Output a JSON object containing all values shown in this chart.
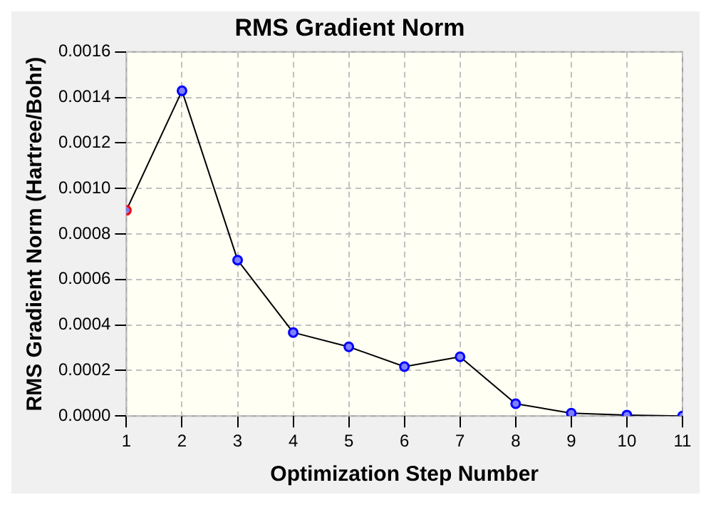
{
  "chart_data": {
    "type": "line",
    "title": "RMS Gradient Norm",
    "xlabel": "Optimization Step Number",
    "ylabel": "RMS Gradient Norm (Hartree/Bohr)",
    "x": [
      1,
      2,
      3,
      4,
      5,
      6,
      7,
      8,
      9,
      10,
      11
    ],
    "series": [
      {
        "color": "#000000",
        "values": [
          0.000904,
          0.001429,
          0.000685,
          0.000367,
          0.000304,
          0.000217,
          0.00026,
          5.4e-05,
          1.25e-05,
          4e-06,
          0
        ],
        "colors": [
          "#ff0000",
          "#0000ff",
          "#0000ff",
          "#0000ff",
          "#0000ff",
          "#0000ff",
          "#0000ff",
          "#0000ff",
          "#0000ff",
          "#0000ff",
          "#0000ff"
        ]
      }
    ],
    "xlim": [
      1,
      11
    ],
    "xticks": [
      1,
      2,
      3,
      4,
      5,
      6,
      7,
      8,
      9,
      10,
      11
    ],
    "ylim": [
      0,
      0.0016
    ],
    "yticks": [
      {
        "value": 0,
        "label": "0.0000"
      },
      {
        "value": 0.0002,
        "label": "0.0002"
      },
      {
        "value": 0.0004,
        "label": "0.0004"
      },
      {
        "value": 0.0006,
        "label": "0.0006"
      },
      {
        "value": 0.0008,
        "label": "0.0008"
      },
      {
        "value": 0.001,
        "label": "0.0010"
      },
      {
        "value": 0.0012,
        "label": "0.0012"
      },
      {
        "value": 0.0014,
        "label": "0.0014"
      },
      {
        "value": 0.0016,
        "label": "0.0016"
      }
    ],
    "grid": true,
    "legend": false,
    "marker": "circle",
    "line_style": "solid"
  }
}
